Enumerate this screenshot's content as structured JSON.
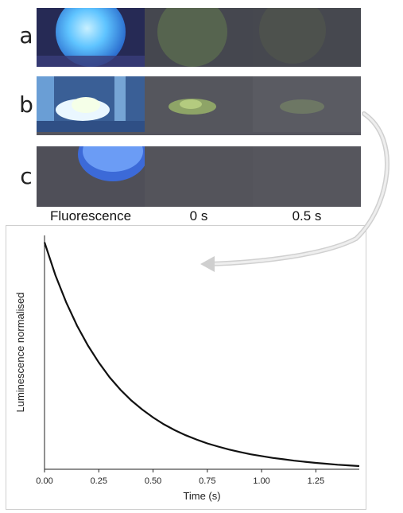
{
  "panel_rows": [
    {
      "label": "a"
    },
    {
      "label": "b"
    },
    {
      "label": "c"
    }
  ],
  "column_labels": [
    "Fluorescence",
    "0 s",
    "0.5 s"
  ],
  "colors": {
    "uv_blue": "#4aa6ff",
    "green_afterglow": "#7c9a5a",
    "dark_bg": "#4d4d56",
    "curve": "#111111"
  },
  "chart_data": {
    "type": "line",
    "xlabel": "Time (s)",
    "ylabel": "Luminescence normalised",
    "xlim": [
      0,
      1.45
    ],
    "ylim": [
      0,
      1.03
    ],
    "xticks": [
      "0.00",
      "0.25",
      "0.50",
      "0.75",
      "1.00",
      "1.25"
    ],
    "xtick_values": [
      0,
      0.25,
      0.5,
      0.75,
      1.0,
      1.25
    ],
    "yticks_visible": false,
    "grid": false,
    "series": [
      {
        "x": [
          0,
          0.05,
          0.1,
          0.15,
          0.2,
          0.25,
          0.3,
          0.35,
          0.4,
          0.45,
          0.5,
          0.55,
          0.6,
          0.65,
          0.7,
          0.75,
          0.8,
          0.85,
          0.9,
          0.95,
          1.0,
          1.05,
          1.1,
          1.15,
          1.2,
          1.25,
          1.3,
          1.35,
          1.4,
          1.45
        ],
        "y": [
          1.0,
          0.855,
          0.735,
          0.632,
          0.545,
          0.47,
          0.405,
          0.35,
          0.303,
          0.263,
          0.228,
          0.198,
          0.172,
          0.15,
          0.131,
          0.114,
          0.1,
          0.087,
          0.076,
          0.066,
          0.058,
          0.05,
          0.044,
          0.038,
          0.033,
          0.028,
          0.024,
          0.02,
          0.017,
          0.014
        ]
      }
    ]
  }
}
